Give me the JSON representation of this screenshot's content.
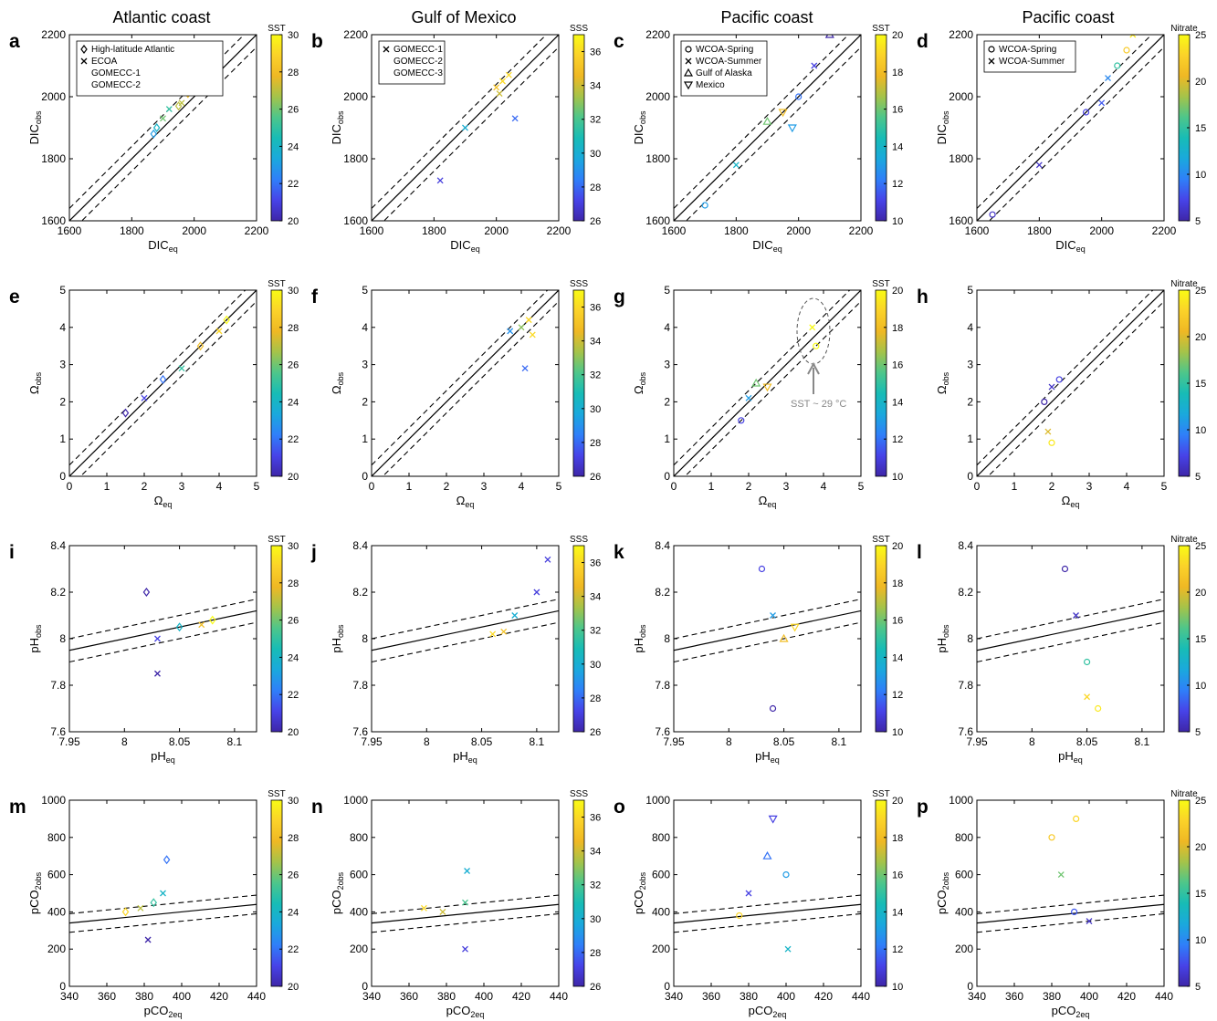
{
  "column_titles": [
    "Atlantic coast",
    "Gulf of Mexico",
    "Pacific coast",
    "Pacific coast"
  ],
  "colormap": [
    "#3e26a8",
    "#4743e8",
    "#2f7ff9",
    "#1aa9dd",
    "#17bcb6",
    "#4dc68b",
    "#a4c34a",
    "#efb824",
    "#fbd229",
    "#f9fb15"
  ],
  "colorbars": [
    {
      "label": "SST",
      "min": 20,
      "max": 30,
      "ticks": [
        20,
        22,
        24,
        26,
        28,
        30
      ]
    },
    {
      "label": "SSS",
      "min": 26,
      "max": 37,
      "ticks": [
        26,
        28,
        30,
        32,
        34,
        36
      ]
    },
    {
      "label": "SST",
      "min": 10,
      "max": 20,
      "ticks": [
        10,
        12,
        14,
        16,
        18,
        20
      ]
    },
    {
      "label": "Nitrate",
      "min": 5,
      "max": 25,
      "ticks": [
        5,
        10,
        15,
        20,
        25
      ]
    }
  ],
  "legends": [
    {
      "entries": [
        {
          "marker": "diamond",
          "text": "High-latitude Atlantic"
        },
        {
          "marker": "x",
          "text": "ECOA"
        },
        {
          "marker": "",
          "text": "GOMECC-1"
        },
        {
          "marker": "",
          "text": "GOMECC-2"
        }
      ]
    },
    {
      "entries": [
        {
          "marker": "x",
          "text": "GOMECC-1"
        },
        {
          "marker": "",
          "text": "GOMECC-2"
        },
        {
          "marker": "",
          "text": "GOMECC-3"
        }
      ]
    },
    {
      "entries": [
        {
          "marker": "circle",
          "text": "WCOA-Spring"
        },
        {
          "marker": "x",
          "text": "WCOA-Summer"
        },
        {
          "marker": "triangle-up",
          "text": "Gulf of Alaska"
        },
        {
          "marker": "triangle-down",
          "text": "Mexico"
        }
      ]
    },
    {
      "entries": [
        {
          "marker": "circle",
          "text": "WCOA-Spring"
        },
        {
          "marker": "x",
          "text": "WCOA-Summer"
        }
      ]
    }
  ],
  "annotation": {
    "text": "SST ~ 29 °C"
  },
  "panel_letters": [
    "a",
    "b",
    "c",
    "d",
    "e",
    "f",
    "g",
    "h",
    "i",
    "j",
    "k",
    "l",
    "m",
    "n",
    "o",
    "p"
  ],
  "chart_data": [
    {
      "type": "scatter",
      "row": "DIC",
      "xlabel": "DIC",
      "xlabel_sub": "eq",
      "ylabel": "DIC",
      "ylabel_sub": "obs",
      "xlim": [
        1600,
        2200
      ],
      "ylim": [
        1600,
        2200
      ],
      "xticks": [
        1600,
        1800,
        2000,
        2200
      ],
      "yticks": [
        1600,
        1800,
        2000,
        2200
      ],
      "ref_line": {
        "type": "one-to-one",
        "offset": 40
      },
      "series": [
        {
          "panel": "a",
          "points": [
            [
              1880,
              1900,
              24
            ],
            [
              1900,
              1930,
              26
            ],
            [
              1950,
              1970,
              27
            ],
            [
              2000,
              2020,
              28
            ],
            [
              2020,
              2050,
              29
            ],
            [
              1920,
              1960,
              25
            ],
            [
              1980,
              2010,
              28
            ],
            [
              2050,
              2060,
              29
            ],
            [
              1870,
              1880,
              23
            ],
            [
              1960,
              1980,
              27
            ]
          ]
        },
        {
          "panel": "b",
          "points": [
            [
              1820,
              1730,
              27
            ],
            [
              1900,
              1900,
              30
            ],
            [
              2000,
              2030,
              35
            ],
            [
              2020,
              2050,
              36
            ],
            [
              2040,
              2070,
              36
            ],
            [
              2060,
              1930,
              28
            ],
            [
              2010,
              2010,
              34
            ]
          ]
        },
        {
          "panel": "c",
          "points": [
            [
              1700,
              1650,
              13
            ],
            [
              1800,
              1780,
              14
            ],
            [
              1900,
              1920,
              16
            ],
            [
              1950,
              1950,
              18
            ],
            [
              2000,
              2000,
              12
            ],
            [
              2050,
              2100,
              11
            ],
            [
              2100,
              2200,
              10
            ],
            [
              1980,
              1900,
              13
            ]
          ]
        },
        {
          "panel": "d",
          "points": [
            [
              1650,
              1620,
              6
            ],
            [
              1800,
              1780,
              6
            ],
            [
              1950,
              1950,
              7
            ],
            [
              2000,
              1980,
              8
            ],
            [
              2050,
              2100,
              15
            ],
            [
              2100,
              2200,
              24
            ],
            [
              2080,
              2150,
              22
            ],
            [
              2020,
              2060,
              10
            ]
          ]
        }
      ]
    },
    {
      "type": "scatter",
      "row": "Omega",
      "xlabel": "Ω",
      "xlabel_sub": "eq",
      "ylabel": "Ω",
      "ylabel_sub": "obs",
      "xlim": [
        0,
        5
      ],
      "ylim": [
        0,
        5
      ],
      "xticks": [
        0,
        1,
        2,
        3,
        4,
        5
      ],
      "yticks": [
        0,
        1,
        2,
        3,
        4,
        5
      ],
      "ref_line": {
        "type": "one-to-one",
        "offset": 0.3
      },
      "series": [
        {
          "panel": "e",
          "points": [
            [
              1.5,
              1.7,
              20
            ],
            [
              2.0,
              2.1,
              21
            ],
            [
              2.5,
              2.6,
              22
            ],
            [
              3.0,
              2.9,
              25
            ],
            [
              3.5,
              3.5,
              28
            ],
            [
              4.0,
              3.9,
              29
            ],
            [
              4.2,
              4.2,
              30
            ]
          ]
        },
        {
          "panel": "f",
          "points": [
            [
              3.7,
              3.9,
              29
            ],
            [
              4.0,
              4.0,
              33
            ],
            [
              4.2,
              4.2,
              36
            ],
            [
              4.3,
              3.8,
              36
            ],
            [
              4.1,
              2.9,
              28
            ]
          ]
        },
        {
          "panel": "g",
          "points": [
            [
              1.8,
              1.5,
              11
            ],
            [
              2.0,
              2.1,
              13
            ],
            [
              2.2,
              2.5,
              16
            ],
            [
              2.5,
              2.4,
              18
            ],
            [
              3.8,
              3.5,
              20
            ],
            [
              3.7,
              4.0,
              20
            ]
          ]
        },
        {
          "panel": "h",
          "points": [
            [
              1.8,
              2.0,
              5
            ],
            [
              2.0,
              2.4,
              6
            ],
            [
              2.2,
              2.6,
              7
            ],
            [
              1.9,
              1.2,
              20
            ],
            [
              2.0,
              0.9,
              24
            ]
          ]
        }
      ]
    },
    {
      "type": "scatter",
      "row": "pH",
      "xlabel": "pH",
      "xlabel_sub": "eq",
      "ylabel": "pH",
      "ylabel_sub": "obs",
      "xlim": [
        7.95,
        8.12
      ],
      "ylim": [
        7.6,
        8.4
      ],
      "xticks": [
        7.95,
        8,
        8.05,
        8.1
      ],
      "yticks": [
        7.6,
        7.8,
        8,
        8.2,
        8.4
      ],
      "ref_line": {
        "type": "one-to-one",
        "offset": 0.05
      },
      "series": [
        {
          "panel": "i",
          "points": [
            [
              8.02,
              8.2,
              20
            ],
            [
              8.03,
              8.0,
              21
            ],
            [
              8.05,
              8.05,
              24
            ],
            [
              8.07,
              8.06,
              28
            ],
            [
              8.08,
              8.08,
              30
            ],
            [
              8.03,
              7.85,
              20
            ]
          ]
        },
        {
          "panel": "j",
          "points": [
            [
              8.06,
              8.02,
              36
            ],
            [
              8.07,
              8.03,
              35
            ],
            [
              8.08,
              8.1,
              30
            ],
            [
              8.1,
              8.2,
              27
            ],
            [
              8.11,
              8.34,
              27
            ]
          ]
        },
        {
          "panel": "k",
          "points": [
            [
              8.03,
              8.3,
              11
            ],
            [
              8.04,
              8.1,
              13
            ],
            [
              8.05,
              8.0,
              18
            ],
            [
              8.06,
              8.05,
              19
            ],
            [
              8.04,
              7.7,
              10
            ]
          ]
        },
        {
          "panel": "l",
          "points": [
            [
              8.03,
              8.3,
              5
            ],
            [
              8.04,
              8.1,
              6
            ],
            [
              8.05,
              7.9,
              15
            ],
            [
              8.05,
              7.75,
              23
            ],
            [
              8.06,
              7.7,
              24
            ]
          ]
        }
      ]
    },
    {
      "type": "scatter",
      "row": "pCO2",
      "xlabel": "pCO",
      "xlabel_sub": "2eq",
      "ylabel": "pCO",
      "ylabel_sub": "2obs",
      "xlim": [
        340,
        440
      ],
      "ylim": [
        0,
        1000
      ],
      "xticks": [
        340,
        360,
        380,
        400,
        420,
        440
      ],
      "yticks": [
        0,
        200,
        400,
        600,
        800,
        1000
      ],
      "ref_line": {
        "type": "one-to-one",
        "offset": 50
      },
      "series": [
        {
          "panel": "m",
          "points": [
            [
              370,
              400,
              29
            ],
            [
              378,
              420,
              27
            ],
            [
              385,
              450,
              25
            ],
            [
              390,
              500,
              24
            ],
            [
              392,
              680,
              22
            ],
            [
              382,
              250,
              20
            ]
          ]
        },
        {
          "panel": "n",
          "points": [
            [
              368,
              420,
              36
            ],
            [
              378,
              400,
              34
            ],
            [
              390,
              450,
              32
            ],
            [
              391,
              620,
              30
            ],
            [
              390,
              200,
              27
            ]
          ]
        },
        {
          "panel": "o",
          "points": [
            [
              375,
              380,
              19
            ],
            [
              380,
              500,
              11
            ],
            [
              390,
              700,
              12
            ],
            [
              393,
              900,
              11
            ],
            [
              400,
              600,
              13
            ],
            [
              401,
              200,
              14
            ]
          ]
        },
        {
          "panel": "p",
          "points": [
            [
              380,
              800,
              22
            ],
            [
              385,
              600,
              17
            ],
            [
              392,
              400,
              8
            ],
            [
              400,
              350,
              6
            ],
            [
              393,
              900,
              23
            ]
          ]
        }
      ]
    }
  ]
}
